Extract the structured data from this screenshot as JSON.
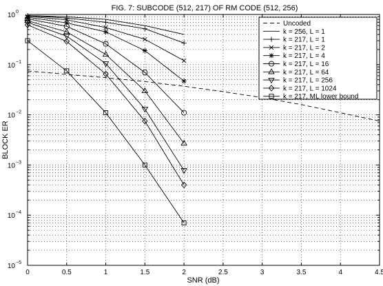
{
  "chart_data": {
    "type": "line",
    "title": "FIG. 7: SUBCODE (512, 217) OF RM CODE (512, 256)",
    "xlabel": "SNR (dB)",
    "ylabel": "BLOCK ER",
    "x_ticks": [
      "0",
      "0.5",
      "1",
      "1.5",
      "2",
      "2.5",
      "3",
      "3.5",
      "4",
      "4.5"
    ],
    "y_ticks": [
      {
        "base": "10",
        "exp": "0"
      },
      {
        "base": "10",
        "exp": "−1"
      },
      {
        "base": "10",
        "exp": "−2"
      },
      {
        "base": "10",
        "exp": "−3"
      },
      {
        "base": "10",
        "exp": "−4"
      },
      {
        "base": "10",
        "exp": "−5"
      }
    ],
    "xlim": [
      0,
      4.5
    ],
    "ylim": [
      1e-05,
      1
    ],
    "yscale": "log",
    "grid": true,
    "legend_position": "top-right",
    "series": [
      {
        "name": "Uncoded",
        "marker": "none",
        "dash": true,
        "x": [
          0,
          0.5,
          1,
          1.5,
          2,
          2.5,
          3,
          3.5,
          4,
          4.5
        ],
        "y": [
          0.075,
          0.064,
          0.055,
          0.046,
          0.037,
          0.029,
          0.022,
          0.016,
          0.011,
          0.0075
        ]
      },
      {
        "name": "k = 256, L = 1",
        "marker": "none",
        "dash": false,
        "x": [
          0,
          0.5,
          1,
          1.5,
          2
        ],
        "y": [
          0.95,
          0.9,
          0.8,
          0.6,
          0.4
        ]
      },
      {
        "name": "k = 217, L = 1",
        "marker": "plus",
        "dash": false,
        "x": [
          0,
          0.5,
          1,
          1.5,
          2
        ],
        "y": [
          0.95,
          0.85,
          0.7,
          0.52,
          0.27
        ]
      },
      {
        "name": "k = 217, L = 2",
        "marker": "x",
        "dash": false,
        "x": [
          0,
          0.5,
          1,
          1.5,
          2
        ],
        "y": [
          0.92,
          0.78,
          0.55,
          0.32,
          0.12
        ]
      },
      {
        "name": "k = 217, L = 4",
        "marker": "star",
        "dash": false,
        "x": [
          0,
          0.5,
          1,
          1.5,
          2
        ],
        "y": [
          0.88,
          0.68,
          0.45,
          0.19,
          0.047
        ]
      },
      {
        "name": "k = 217, L = 16",
        "marker": "circle",
        "dash": false,
        "x": [
          0,
          0.5,
          1,
          1.5,
          2
        ],
        "y": [
          0.82,
          0.58,
          0.26,
          0.07,
          0.011
        ]
      },
      {
        "name": "k = 217, L = 64",
        "marker": "triangle",
        "dash": false,
        "x": [
          0,
          0.5,
          1,
          1.5,
          2
        ],
        "y": [
          0.75,
          0.45,
          0.16,
          0.03,
          0.0027
        ]
      },
      {
        "name": "k = 217, L = 256",
        "marker": "triangle-down",
        "dash": false,
        "x": [
          0,
          0.5,
          1,
          1.5,
          2
        ],
        "y": [
          0.7,
          0.37,
          0.105,
          0.013,
          0.00078
        ]
      },
      {
        "name": "k = 217, L = 1024",
        "marker": "diamond",
        "dash": false,
        "x": [
          0,
          0.5,
          1,
          1.5,
          2
        ],
        "y": [
          0.62,
          0.29,
          0.065,
          0.0075,
          0.0004
        ]
      },
      {
        "name": "k = 217, ML lower bound",
        "marker": "square",
        "dash": false,
        "x": [
          0,
          0.5,
          1,
          1.5,
          2
        ],
        "y": [
          0.3,
          0.075,
          0.011,
          0.001,
          7e-05
        ]
      }
    ]
  }
}
